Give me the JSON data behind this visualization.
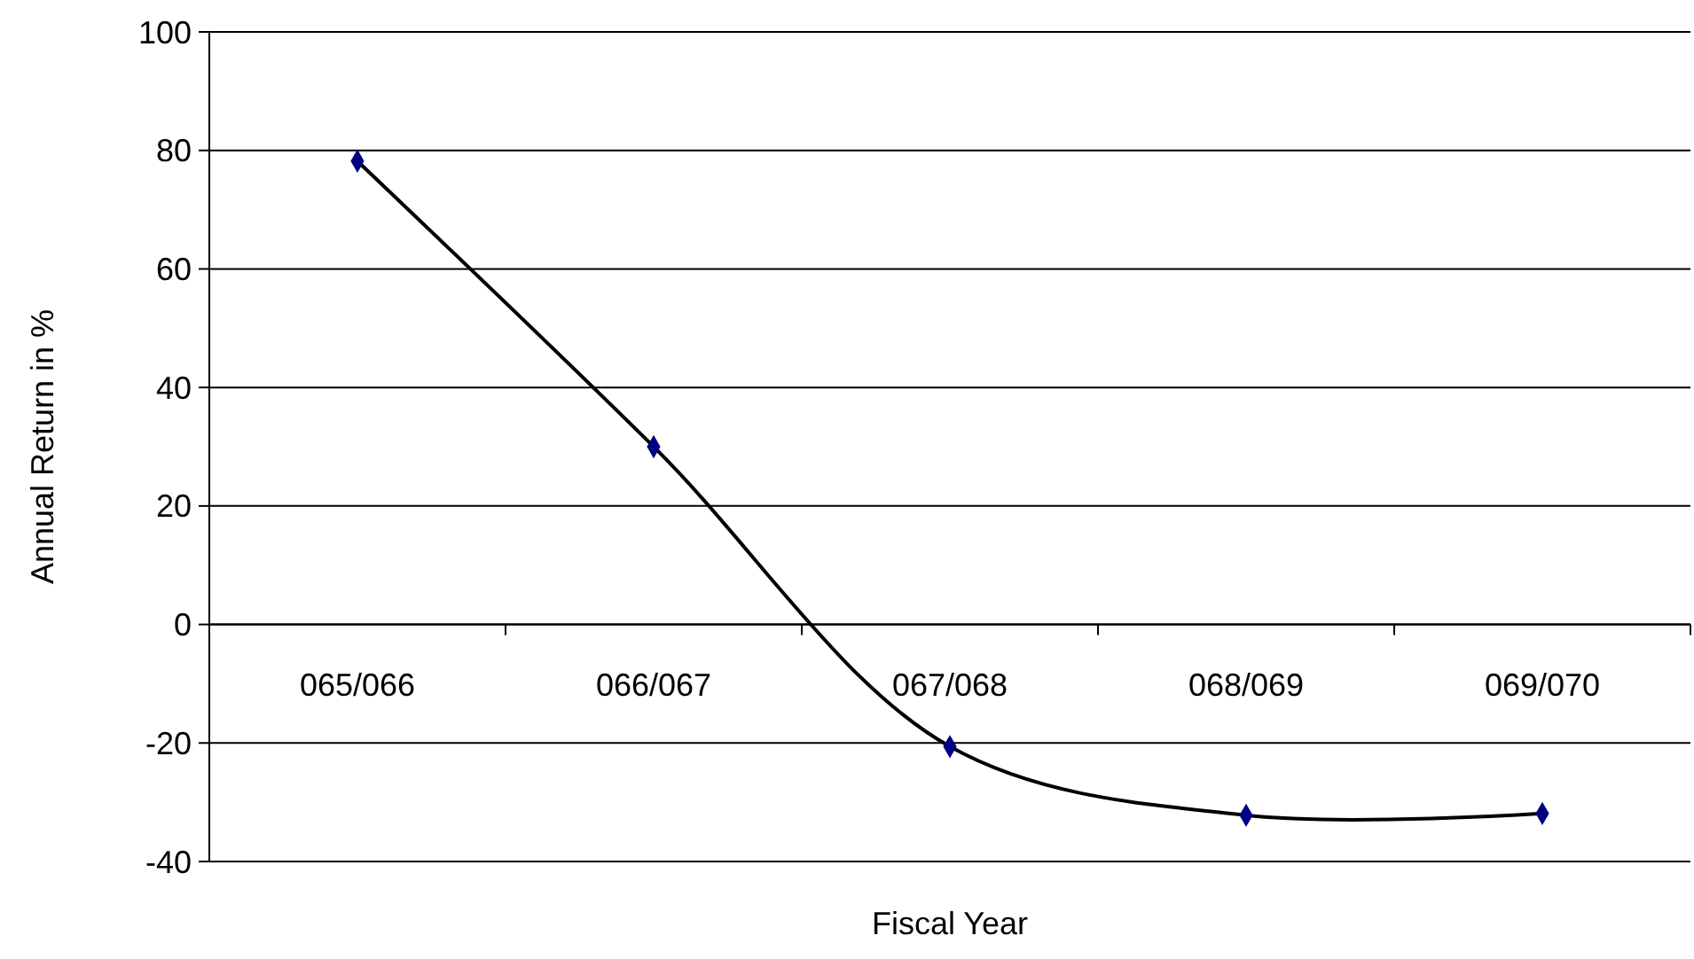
{
  "chart_data": {
    "type": "line",
    "xlabel": "Fiscal Year",
    "ylabel": "Annual Return in %",
    "categories": [
      "065/066",
      "066/067",
      "067/068",
      "068/069",
      "069/070"
    ],
    "series": [
      {
        "color": "#000000",
        "values": [
          78.2,
          30,
          -20.6,
          -32.2,
          -31.9
        ]
      }
    ],
    "ylim": [
      -40,
      100
    ],
    "yticks": [
      -40,
      -20,
      0,
      20,
      40,
      60,
      80,
      100
    ],
    "grid": "y",
    "marker": "diamond",
    "line_style": "solid"
  }
}
